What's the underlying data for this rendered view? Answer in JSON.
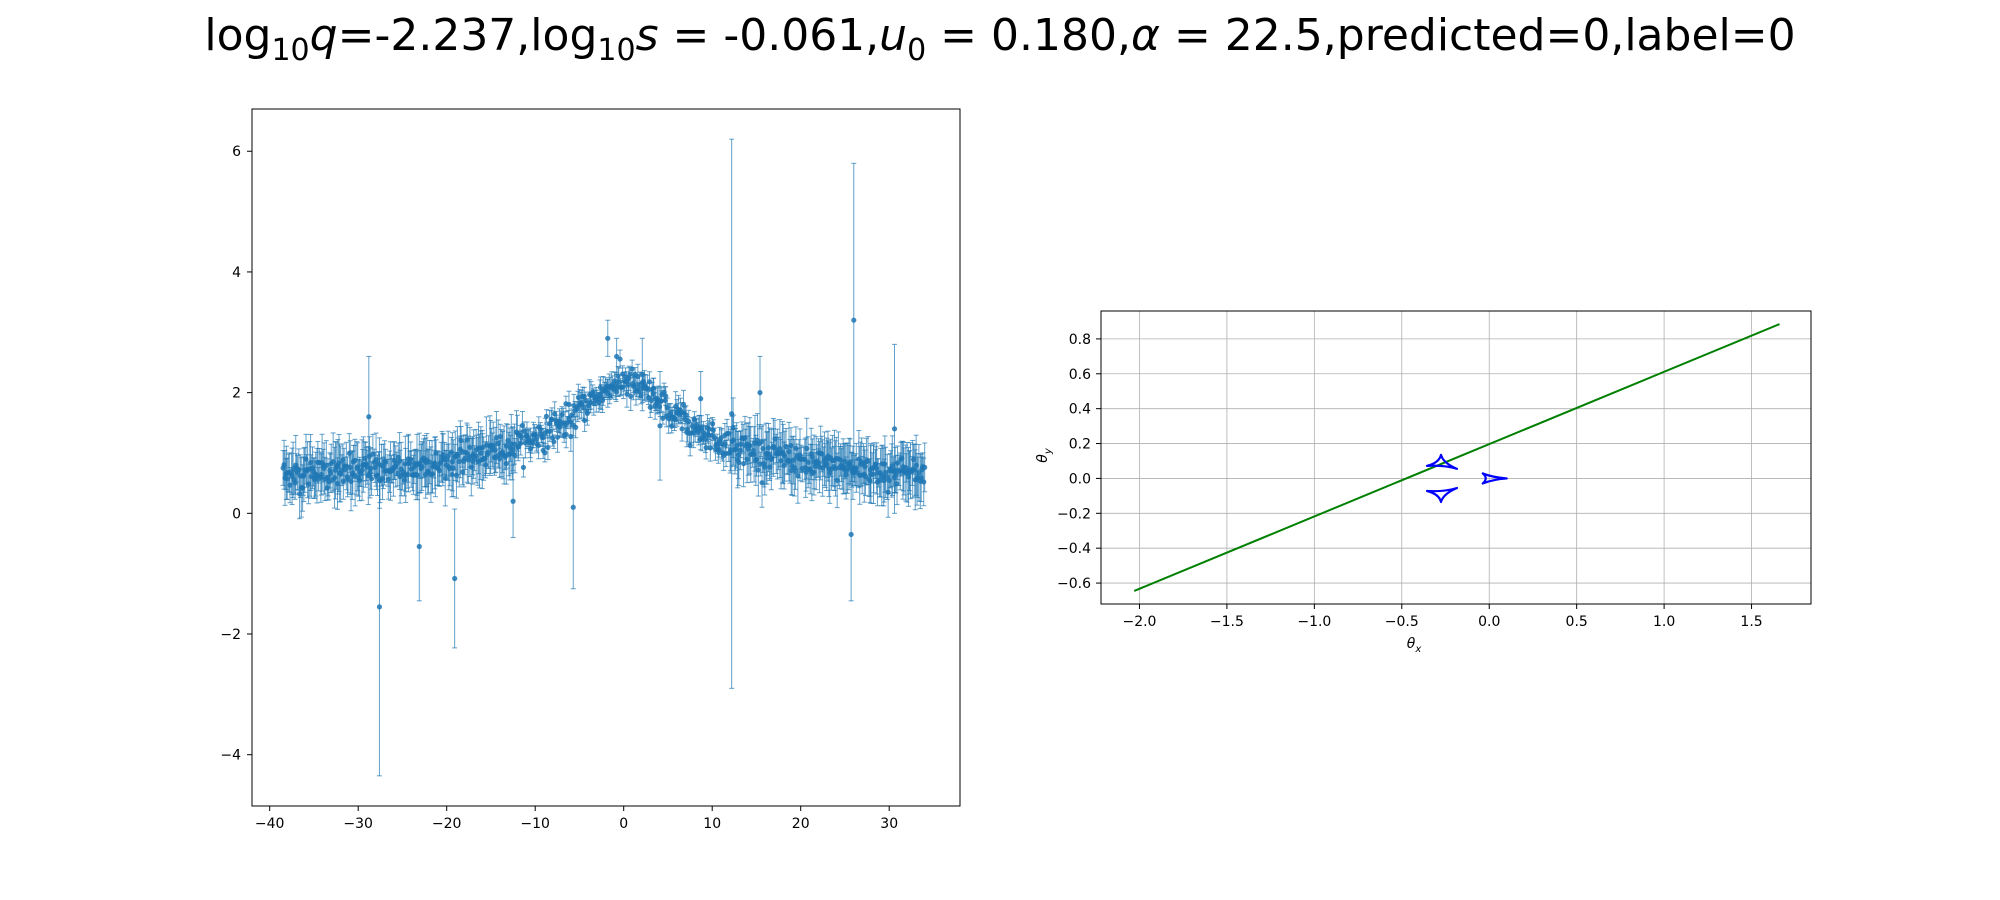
{
  "title": {
    "q_prefix": "log",
    "q_base": "10",
    "q_var": "q",
    "q_value": "=-2.237,",
    "s_prefix": "log",
    "s_base": "10",
    "s_var": "s",
    "s_value": " = -0.061,",
    "u_var": "u",
    "u_sub": "0",
    "u_value": " = 0.180,",
    "alpha_var": "α",
    "alpha_value": " = 22.5,predicted=0,label=0"
  },
  "chart_data": [
    {
      "type": "scatter",
      "name": "light-curve",
      "title": "",
      "xlabel": "",
      "ylabel": "",
      "xlim": [
        -42,
        38
      ],
      "ylim": [
        -4.85,
        6.7
      ],
      "xticks": [
        -40,
        -30,
        -20,
        -10,
        0,
        10,
        20,
        30
      ],
      "xtick_labels": [
        "−40",
        "−30",
        "−20",
        "−10",
        "0",
        "10",
        "20",
        "30"
      ],
      "yticks": [
        -4,
        -2,
        0,
        2,
        4,
        6
      ],
      "ytick_labels": [
        "−4",
        "−2",
        "0",
        "2",
        "4",
        "6"
      ],
      "color": "#1f77b4",
      "model": {
        "baseline": 0.45,
        "t0": 0,
        "peak_amplitude": 1.8,
        "width": 8.5,
        "x_range": [
          -38.5,
          34
        ]
      },
      "noise_level": 0.35,
      "point_count": 700,
      "outliers": [
        {
          "x": 12.2,
          "y": 1.65,
          "err": 4.55
        },
        {
          "x": 26.0,
          "y": 3.2,
          "err": 2.6
        },
        {
          "x": -27.6,
          "y": -1.55,
          "err": 2.8
        },
        {
          "x": -28.8,
          "y": 1.6,
          "err": 1.0
        },
        {
          "x": -19.1,
          "y": -1.08,
          "err": 1.15
        },
        {
          "x": -5.7,
          "y": 0.1,
          "err": 1.35
        },
        {
          "x": 25.7,
          "y": -0.35,
          "err": 1.1
        },
        {
          "x": -23.1,
          "y": -0.55,
          "err": 0.9
        },
        {
          "x": -1.8,
          "y": 2.9,
          "err": 0.3
        },
        {
          "x": -0.8,
          "y": 2.6,
          "err": 0.3
        },
        {
          "x": 2.1,
          "y": 2.3,
          "err": 0.6
        },
        {
          "x": 30.6,
          "y": 1.4,
          "err": 1.4
        },
        {
          "x": 4.1,
          "y": 1.45,
          "err": 0.9
        },
        {
          "x": 15.4,
          "y": 2.0,
          "err": 0.6
        },
        {
          "x": 8.7,
          "y": 1.9,
          "err": 0.45
        },
        {
          "x": -12.5,
          "y": 0.2,
          "err": 0.6
        }
      ]
    },
    {
      "type": "line",
      "name": "caustic-trajectory",
      "title": "",
      "xlabel": "θx",
      "ylabel": "θy",
      "xlim": [
        -2.22,
        1.84
      ],
      "ylim": [
        -0.72,
        0.96
      ],
      "xticks": [
        -2.0,
        -1.5,
        -1.0,
        -0.5,
        0.0,
        0.5,
        1.0,
        1.5
      ],
      "xtick_labels": [
        "−2.0",
        "−1.5",
        "−1.0",
        "−0.5",
        "0.0",
        "0.5",
        "1.0",
        "1.5"
      ],
      "yticks": [
        -0.6,
        -0.4,
        -0.2,
        0.0,
        0.2,
        0.4,
        0.6,
        0.8
      ],
      "ytick_labels": [
        "−0.6",
        "−0.4",
        "−0.2",
        "0.0",
        "0.2",
        "0.4",
        "0.6",
        "0.8"
      ],
      "grid": true,
      "trajectory": {
        "color": "#008000",
        "points": [
          [
            -2.03,
            -0.645
          ],
          [
            1.66,
            0.885
          ]
        ]
      },
      "caustics": {
        "color": "#0000ff",
        "shapes": [
          {
            "x": -0.27,
            "y": 0.095,
            "orientation": "up"
          },
          {
            "x": -0.27,
            "y": -0.095,
            "orientation": "down"
          },
          {
            "x": 0.02,
            "y": 0.0,
            "orientation": "right"
          }
        ]
      }
    }
  ]
}
